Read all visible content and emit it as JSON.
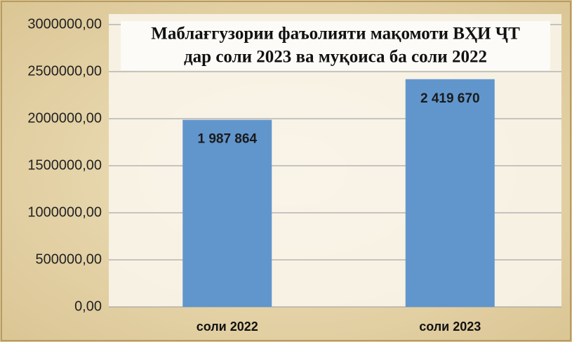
{
  "chart_data": {
    "type": "bar",
    "title": [
      "Маблағгузории фаъолияти мақомоти ВҲИ ҶТ",
      "дар соли 2023 ва муқоиса ба соли 2022"
    ],
    "categories": [
      "соли 2022",
      "соли 2023"
    ],
    "values": [
      1987864,
      2419670
    ],
    "value_labels": [
      "1 987 864",
      "2 419 670"
    ],
    "color": "#6196cd",
    "ylim": [
      0,
      3000000
    ],
    "yticks": [
      {
        "value": 0,
        "label": "0,00"
      },
      {
        "value": 500000,
        "label": "500000,00"
      },
      {
        "value": 1000000,
        "label": "1000000,00"
      },
      {
        "value": 1500000,
        "label": "1500000,00"
      },
      {
        "value": 2000000,
        "label": "2000000,00"
      },
      {
        "value": 2500000,
        "label": "2500000,00"
      },
      {
        "value": 3000000,
        "label": "3000000,00"
      }
    ],
    "grid": true
  }
}
